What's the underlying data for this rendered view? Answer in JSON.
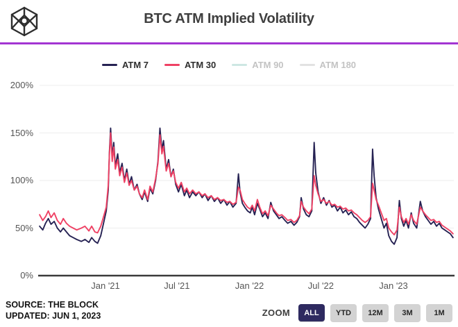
{
  "header": {
    "title": "BTC ATM Implied Volatility",
    "logo_name": "the-block-logo",
    "divider_color": "#a335d2"
  },
  "footer": {
    "source_line1": "SOURCE: THE BLOCK",
    "source_line2": "UPDATED: JUN 1, 2023",
    "zoom_label": "ZOOM",
    "zoom_options": [
      "ALL",
      "YTD",
      "12M",
      "3M",
      "1M"
    ],
    "zoom_active": "ALL",
    "zoom_active_bg": "#2e2a60",
    "zoom_inactive_bg": "#d3d3d3"
  },
  "chart_data": {
    "type": "line",
    "title": "BTC ATM Implied Volatility",
    "xlabel": "",
    "ylabel": "",
    "ylim": [
      0,
      215
    ],
    "grid": "horizontal",
    "grid_color": "#ededed",
    "axis_color": "#3a3a3a",
    "legend_position": "top",
    "y_ticks": [
      {
        "label": "0%",
        "value": 0
      },
      {
        "label": "50%",
        "value": 50
      },
      {
        "label": "100%",
        "value": 100
      },
      {
        "label": "150%",
        "value": 150
      },
      {
        "label": "200%",
        "value": 200
      }
    ],
    "x_ticks": [
      {
        "label": "Jan '21",
        "date": "2021-01-01"
      },
      {
        "label": "Jul '21",
        "date": "2021-07-01"
      },
      {
        "label": "Jan '22",
        "date": "2022-01-01"
      },
      {
        "label": "Jul '22",
        "date": "2022-07-01"
      },
      {
        "label": "Jan '23",
        "date": "2023-01-01"
      }
    ],
    "x": [
      "2020-07-18",
      "2020-07-26",
      "2020-08-02",
      "2020-08-09",
      "2020-08-16",
      "2020-08-24",
      "2020-09-01",
      "2020-09-09",
      "2020-09-16",
      "2020-09-24",
      "2020-10-02",
      "2020-10-11",
      "2020-10-20",
      "2020-11-01",
      "2020-11-10",
      "2020-11-20",
      "2020-11-27",
      "2020-12-05",
      "2020-12-12",
      "2020-12-20",
      "2020-12-27",
      "2021-01-03",
      "2021-01-08",
      "2021-01-11",
      "2021-01-14",
      "2021-01-18",
      "2021-01-22",
      "2021-01-26",
      "2021-02-01",
      "2021-02-06",
      "2021-02-12",
      "2021-02-18",
      "2021-02-24",
      "2021-03-02",
      "2021-03-08",
      "2021-03-15",
      "2021-03-22",
      "2021-03-28",
      "2021-04-04",
      "2021-04-10",
      "2021-04-18",
      "2021-04-24",
      "2021-05-01",
      "2021-05-08",
      "2021-05-14",
      "2021-05-19",
      "2021-05-24",
      "2021-05-28",
      "2021-06-04",
      "2021-06-10",
      "2021-06-16",
      "2021-06-22",
      "2021-06-28",
      "2021-07-05",
      "2021-07-12",
      "2021-07-20",
      "2021-07-26",
      "2021-08-02",
      "2021-08-10",
      "2021-08-18",
      "2021-08-26",
      "2021-09-03",
      "2021-09-10",
      "2021-09-18",
      "2021-09-26",
      "2021-10-04",
      "2021-10-12",
      "2021-10-20",
      "2021-10-28",
      "2021-11-05",
      "2021-11-12",
      "2021-11-20",
      "2021-11-28",
      "2021-12-04",
      "2021-12-08",
      "2021-12-14",
      "2021-12-20",
      "2021-12-27",
      "2022-01-03",
      "2022-01-08",
      "2022-01-14",
      "2022-01-21",
      "2022-01-27",
      "2022-02-03",
      "2022-02-10",
      "2022-02-17",
      "2022-02-24",
      "2022-03-03",
      "2022-03-10",
      "2022-03-17",
      "2022-03-24",
      "2022-04-01",
      "2022-04-08",
      "2022-04-16",
      "2022-04-24",
      "2022-05-01",
      "2022-05-08",
      "2022-05-12",
      "2022-05-18",
      "2022-05-25",
      "2022-06-01",
      "2022-06-08",
      "2022-06-14",
      "2022-06-18",
      "2022-06-24",
      "2022-07-01",
      "2022-07-08",
      "2022-07-15",
      "2022-07-22",
      "2022-07-29",
      "2022-08-05",
      "2022-08-12",
      "2022-08-19",
      "2022-08-26",
      "2022-09-02",
      "2022-09-09",
      "2022-09-16",
      "2022-09-23",
      "2022-09-30",
      "2022-10-07",
      "2022-10-14",
      "2022-10-21",
      "2022-10-28",
      "2022-11-04",
      "2022-11-09",
      "2022-11-13",
      "2022-11-18",
      "2022-11-24",
      "2022-12-01",
      "2022-12-08",
      "2022-12-14",
      "2022-12-20",
      "2022-12-27",
      "2023-01-03",
      "2023-01-10",
      "2023-01-16",
      "2023-01-21",
      "2023-01-27",
      "2023-02-02",
      "2023-02-08",
      "2023-02-15",
      "2023-02-21",
      "2023-03-01",
      "2023-03-10",
      "2023-03-16",
      "2023-03-23",
      "2023-03-30",
      "2023-04-06",
      "2023-04-13",
      "2023-04-20",
      "2023-04-27",
      "2023-05-04",
      "2023-05-11",
      "2023-05-18",
      "2023-05-25",
      "2023-06-01"
    ],
    "series": [
      {
        "name": "ATM 7",
        "color": "#262253",
        "visible": true,
        "values": [
          52,
          48,
          55,
          60,
          54,
          57,
          50,
          46,
          50,
          46,
          42,
          40,
          38,
          36,
          38,
          35,
          40,
          36,
          34,
          42,
          55,
          68,
          90,
          130,
          155,
          125,
          140,
          115,
          128,
          108,
          118,
          100,
          112,
          96,
          104,
          90,
          96,
          86,
          80,
          88,
          78,
          92,
          86,
          100,
          120,
          155,
          132,
          142,
          112,
          122,
          104,
          112,
          96,
          88,
          96,
          84,
          90,
          82,
          88,
          84,
          88,
          82,
          86,
          79,
          84,
          78,
          82,
          76,
          80,
          74,
          78,
          72,
          76,
          107,
          88,
          76,
          72,
          68,
          66,
          72,
          64,
          76,
          70,
          62,
          66,
          60,
          77,
          68,
          64,
          60,
          62,
          58,
          55,
          57,
          53,
          56,
          62,
          82,
          70,
          64,
          62,
          68,
          140,
          108,
          88,
          76,
          82,
          74,
          79,
          72,
          74,
          68,
          72,
          66,
          69,
          64,
          67,
          62,
          60,
          56,
          53,
          50,
          54,
          60,
          133,
          105,
          82,
          70,
          60,
          50,
          55,
          42,
          36,
          33,
          40,
          79,
          60,
          52,
          58,
          50,
          66,
          55,
          50,
          78,
          68,
          62,
          58,
          54,
          57,
          52,
          55,
          50,
          48,
          46,
          44,
          40
        ]
      },
      {
        "name": "ATM 30",
        "color": "#ef4164",
        "visible": true,
        "values": [
          64,
          58,
          62,
          68,
          61,
          66,
          58,
          54,
          60,
          55,
          52,
          50,
          48,
          50,
          52,
          47,
          52,
          46,
          45,
          52,
          62,
          72,
          95,
          128,
          150,
          120,
          135,
          112,
          122,
          105,
          114,
          98,
          108,
          95,
          100,
          90,
          94,
          86,
          82,
          90,
          80,
          94,
          88,
          102,
          118,
          148,
          128,
          136,
          110,
          118,
          104,
          110,
          98,
          92,
          98,
          88,
          92,
          86,
          90,
          86,
          88,
          84,
          86,
          82,
          84,
          80,
          82,
          79,
          80,
          77,
          78,
          75,
          77,
          93,
          90,
          80,
          76,
          72,
          70,
          74,
          68,
          80,
          72,
          65,
          68,
          63,
          74,
          70,
          66,
          63,
          64,
          61,
          58,
          59,
          56,
          58,
          63,
          78,
          72,
          68,
          65,
          70,
          105,
          95,
          86,
          78,
          80,
          76,
          78,
          74,
          75,
          72,
          73,
          70,
          71,
          68,
          69,
          66,
          64,
          61,
          58,
          56,
          58,
          62,
          97,
          90,
          80,
          74,
          66,
          58,
          60,
          50,
          46,
          43,
          48,
          72,
          62,
          56,
          60,
          54,
          64,
          58,
          54,
          72,
          68,
          64,
          61,
          58,
          59,
          56,
          57,
          53,
          51,
          49,
          47,
          44
        ]
      },
      {
        "name": "ATM 90",
        "color": "#cde7e3",
        "visible": false,
        "values": []
      },
      {
        "name": "ATM 180",
        "color": "#e2e2e2",
        "visible": false,
        "values": []
      }
    ]
  }
}
